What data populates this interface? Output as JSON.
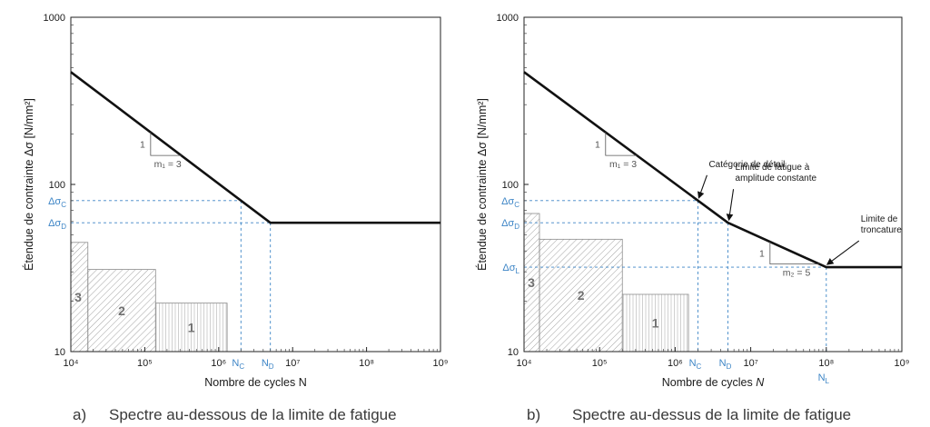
{
  "chart_data": [
    {
      "panel": "a)",
      "caption": "Spectre au-dessous de la limite de fatigue",
      "type": "line",
      "xscale": "log",
      "yscale": "log",
      "xlim": [
        10000,
        1000000000
      ],
      "ylim": [
        10,
        1000
      ],
      "xlabel": "Nombre de cycles N",
      "ylabel": "Étendue de contrainte Δσ [N/mm²]",
      "x_ticks": [
        "10⁴",
        "10⁵",
        "10⁶",
        "10⁷",
        "10⁸",
        "10⁹"
      ],
      "y_ticks": [
        "10",
        "100",
        "1000"
      ],
      "series": [
        {
          "points": [
            [
              10000,
              470
            ],
            [
              5000000,
              59
            ],
            [
              1000000000,
              59
            ]
          ]
        }
      ],
      "reference_lines": [
        {
          "label": "Δσ_C",
          "y": 80,
          "x": 2000000
        },
        {
          "label": "Δσ_D",
          "y": 59,
          "x": 5000000
        }
      ],
      "x_markers": [
        {
          "label": "N_C",
          "x": 2000000
        },
        {
          "label": "N_D",
          "x": 5000000
        }
      ],
      "slope_label": {
        "rise": "1",
        "m": "m₁ = 3"
      },
      "blocks": [
        {
          "label": "3",
          "x0": 10000,
          "x1": 17000,
          "height": 45
        },
        {
          "label": "2",
          "x0": 17000,
          "x1": 140000,
          "height": 31
        },
        {
          "label": "1",
          "x0": 140000,
          "x1": 1300000,
          "height": 19.5
        }
      ]
    },
    {
      "panel": "b)",
      "caption": "Spectre au-dessus de la limite de fatigue",
      "type": "line",
      "xscale": "log",
      "yscale": "log",
      "xlim": [
        10000,
        1000000000
      ],
      "ylim": [
        10,
        1000
      ],
      "xlabel": "Nombre de cycles N",
      "ylabel": "Étendue de contrainte Δσ [N/mm²]",
      "x_ticks": [
        "10⁴",
        "10⁵",
        "10⁶",
        "10⁷",
        "10⁸",
        "10⁹"
      ],
      "y_ticks": [
        "10",
        "100",
        "1000"
      ],
      "series": [
        {
          "points": [
            [
              10000,
              470
            ],
            [
              5000000,
              59
            ],
            [
              100000000,
              32
            ],
            [
              1000000000,
              32
            ]
          ]
        }
      ],
      "reference_lines": [
        {
          "label": "Δσ_C",
          "y": 80,
          "x": 2000000
        },
        {
          "label": "Δσ_D",
          "y": 59,
          "x": 5000000
        },
        {
          "label": "Δσ_L",
          "y": 32,
          "x": 100000000
        }
      ],
      "x_markers": [
        {
          "label": "N_C",
          "x": 2000000
        },
        {
          "label": "N_D",
          "x": 5000000
        },
        {
          "label": "N_L",
          "x": 100000000
        }
      ],
      "slope_labels": [
        {
          "rise": "1",
          "m": "m₁ = 3"
        },
        {
          "rise": "1",
          "m": "m₂ = 5"
        }
      ],
      "annotations": [
        {
          "text": "Catégorie de détail",
          "x": 2000000,
          "y": 80
        },
        {
          "text": "Limite de fatigue à amplitude constante",
          "x": 5000000,
          "y": 59
        },
        {
          "text": "Limite de troncature",
          "x": 100000000,
          "y": 32
        }
      ],
      "blocks": [
        {
          "label": "3",
          "x0": 10000,
          "x1": 16000,
          "height": 67
        },
        {
          "label": "2",
          "x0": 16000,
          "x1": 200000,
          "height": 47
        },
        {
          "label": "1",
          "x0": 200000,
          "x1": 1500000,
          "height": 22
        }
      ]
    }
  ]
}
